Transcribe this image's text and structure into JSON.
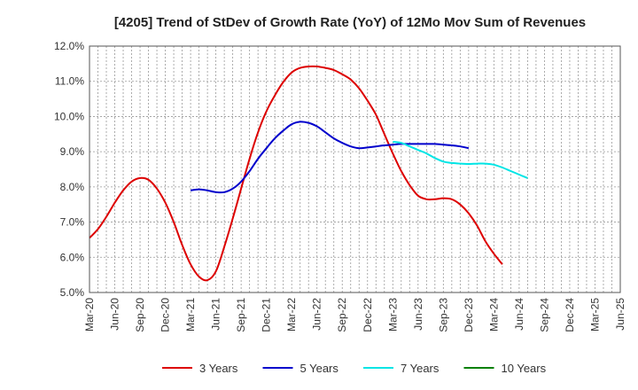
{
  "chart_data": {
    "type": "line",
    "title": "[4205]  Trend of StDev of Growth Rate (YoY) of 12Mo Mov Sum of Revenues",
    "xlabel": "",
    "ylabel": "",
    "ylim": [
      5.0,
      12.0
    ],
    "y_ticks": [
      "5.0%",
      "6.0%",
      "7.0%",
      "8.0%",
      "9.0%",
      "10.0%",
      "11.0%",
      "12.0%"
    ],
    "x_ticks": [
      "Mar-20",
      "Jun-20",
      "Sep-20",
      "Dec-20",
      "Mar-21",
      "Jun-21",
      "Sep-21",
      "Dec-21",
      "Mar-22",
      "Jun-22",
      "Sep-22",
      "Dec-22",
      "Mar-23",
      "Jun-23",
      "Sep-23",
      "Dec-23",
      "Mar-24",
      "Jun-24",
      "Sep-24",
      "Dec-24",
      "Mar-25",
      "Jun-25"
    ],
    "grid": true,
    "legend_position": "bottom",
    "series": [
      {
        "name": "3 Years",
        "color": "#dd0000",
        "start_index": 0,
        "values": [
          6.55,
          6.8,
          7.15,
          7.55,
          7.9,
          8.15,
          8.25,
          8.2,
          7.95,
          7.55,
          7.0,
          6.35,
          5.8,
          5.45,
          5.35,
          5.6,
          6.3,
          7.1,
          7.95,
          8.8,
          9.55,
          10.15,
          10.6,
          10.98,
          11.25,
          11.38,
          11.42,
          11.42,
          11.38,
          11.32,
          11.2,
          11.05,
          10.8,
          10.45,
          10.05,
          9.5,
          8.95,
          8.45,
          8.05,
          7.75,
          7.65,
          7.65,
          7.68,
          7.65,
          7.5,
          7.25,
          6.9,
          6.45,
          6.1,
          5.8
        ]
      },
      {
        "name": "5 Years",
        "color": "#0000cc",
        "start_index": 12,
        "values": [
          7.9,
          7.93,
          7.9,
          7.85,
          7.85,
          7.95,
          8.15,
          8.45,
          8.8,
          9.1,
          9.38,
          9.6,
          9.78,
          9.85,
          9.82,
          9.72,
          9.55,
          9.38,
          9.25,
          9.15,
          9.1,
          9.12,
          9.15,
          9.18,
          9.2,
          9.22,
          9.22,
          9.22,
          9.22,
          9.22,
          9.2,
          9.18,
          9.15,
          9.1
        ]
      },
      {
        "name": "7 Years",
        "color": "#00e5e5",
        "start_index": 36,
        "values": [
          9.28,
          9.25,
          9.15,
          9.05,
          8.95,
          8.82,
          8.72,
          8.68,
          8.66,
          8.65,
          8.66,
          8.66,
          8.63,
          8.55,
          8.45,
          8.35,
          8.25
        ]
      },
      {
        "name": "10 Years",
        "color": "#008000",
        "start_index": 0,
        "values": []
      }
    ]
  }
}
